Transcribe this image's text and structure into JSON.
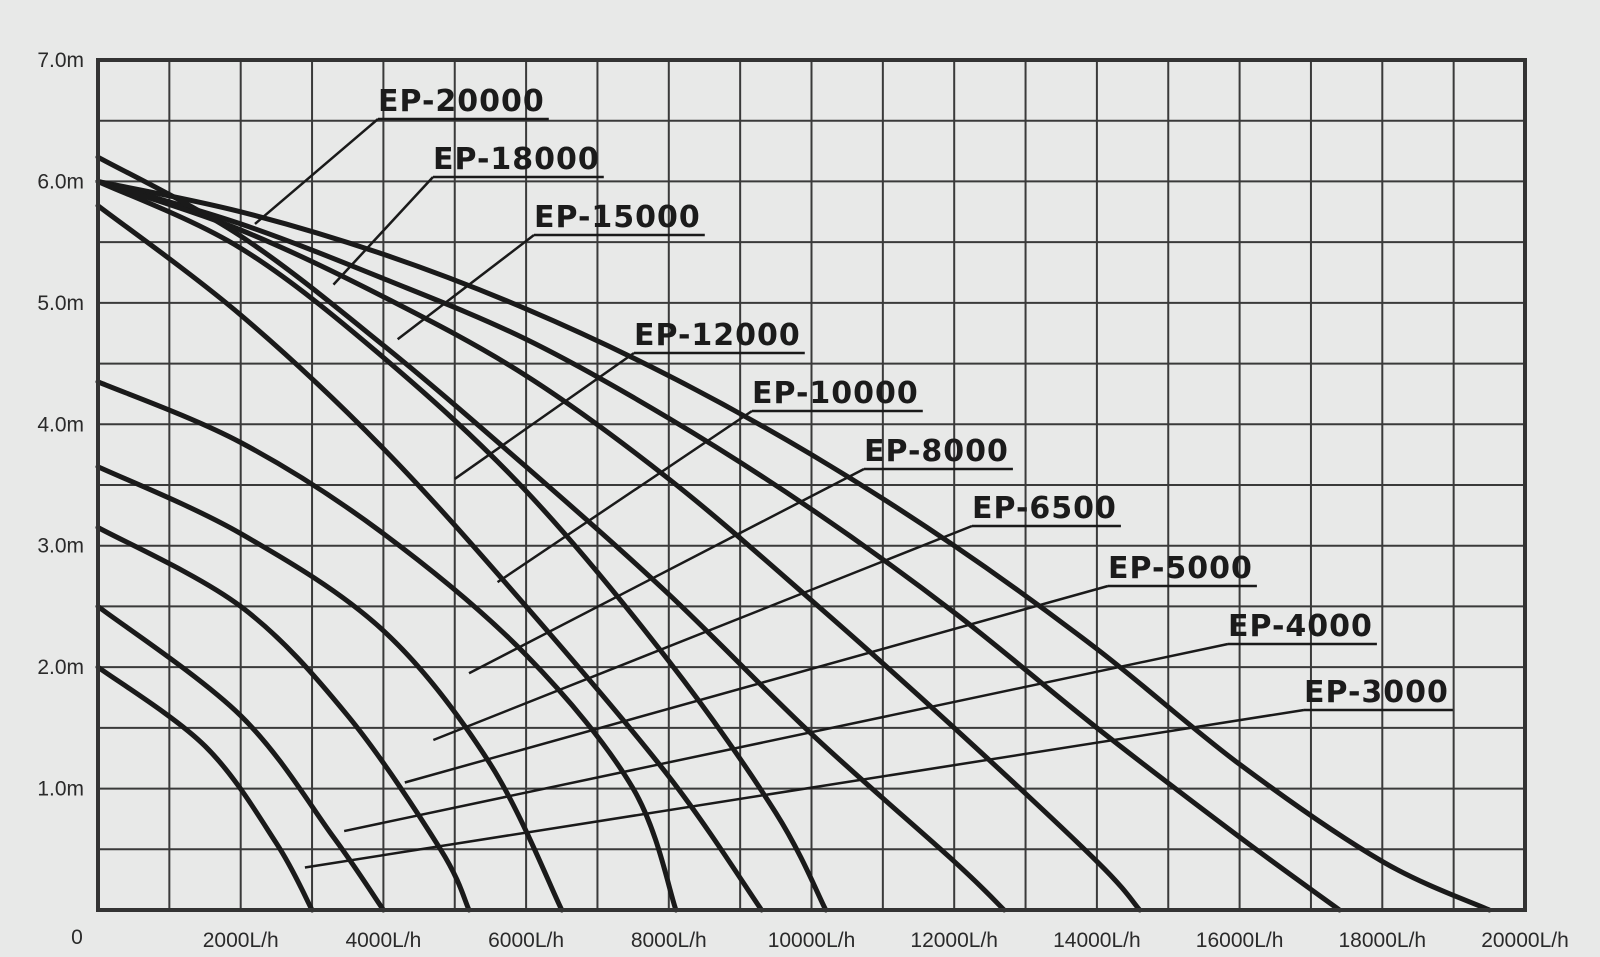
{
  "chart_data": {
    "type": "line",
    "x_axis": {
      "range": [
        0,
        20000
      ],
      "ticks": [
        2000,
        4000,
        6000,
        8000,
        10000,
        12000,
        14000,
        16000,
        18000,
        20000
      ],
      "tick_labels": [
        "2000L/h",
        "4000L/h",
        "6000L/h",
        "8000L/h",
        "10000L/h",
        "12000L/h",
        "14000L/h",
        "16000L/h",
        "18000L/h",
        "20000L/h"
      ],
      "origin_label": "0"
    },
    "y_axis": {
      "range": [
        0,
        7
      ],
      "ticks": [
        1,
        2,
        3,
        4,
        5,
        6,
        7
      ],
      "tick_labels": [
        "1.0m",
        "2.0m",
        "3.0m",
        "4.0m",
        "5.0m",
        "6.0m",
        "7.0m"
      ]
    },
    "grid": true,
    "series": [
      {
        "name": "EP-20000",
        "points": [
          [
            0,
            6.0
          ],
          [
            2000,
            5.75
          ],
          [
            4000,
            5.4
          ],
          [
            6000,
            4.95
          ],
          [
            8000,
            4.4
          ],
          [
            10000,
            3.75
          ],
          [
            12000,
            3.0
          ],
          [
            14000,
            2.15
          ],
          [
            16000,
            1.2
          ],
          [
            18000,
            0.4
          ],
          [
            19500,
            0.0
          ]
        ]
      },
      {
        "name": "EP-18000",
        "points": [
          [
            0,
            6.0
          ],
          [
            2000,
            5.65
          ],
          [
            4000,
            5.2
          ],
          [
            6000,
            4.7
          ],
          [
            8000,
            4.05
          ],
          [
            10000,
            3.3
          ],
          [
            12000,
            2.45
          ],
          [
            14000,
            1.5
          ],
          [
            16000,
            0.6
          ],
          [
            17400,
            0.0
          ]
        ]
      },
      {
        "name": "EP-15000",
        "points": [
          [
            0,
            6.0
          ],
          [
            2000,
            5.6
          ],
          [
            4000,
            5.05
          ],
          [
            6000,
            4.4
          ],
          [
            8000,
            3.55
          ],
          [
            10000,
            2.55
          ],
          [
            12000,
            1.5
          ],
          [
            14000,
            0.4
          ],
          [
            14600,
            0.0
          ]
        ]
      },
      {
        "name": "EP-12000",
        "points": [
          [
            0,
            6.2
          ],
          [
            2000,
            5.55
          ],
          [
            4000,
            4.65
          ],
          [
            6000,
            3.65
          ],
          [
            8000,
            2.6
          ],
          [
            10000,
            1.45
          ],
          [
            12000,
            0.4
          ],
          [
            12700,
            0.0
          ]
        ]
      },
      {
        "name": "EP-10000",
        "points": [
          [
            0,
            6.0
          ],
          [
            2000,
            5.45
          ],
          [
            4000,
            4.55
          ],
          [
            6000,
            3.45
          ],
          [
            8000,
            2.05
          ],
          [
            9500,
            0.8
          ],
          [
            10200,
            0.0
          ]
        ]
      },
      {
        "name": "EP-8000",
        "points": [
          [
            0,
            5.8
          ],
          [
            2000,
            4.9
          ],
          [
            4000,
            3.8
          ],
          [
            6000,
            2.5
          ],
          [
            8000,
            1.1
          ],
          [
            9300,
            0.0
          ]
        ]
      },
      {
        "name": "EP-6500",
        "points": [
          [
            0,
            4.35
          ],
          [
            2000,
            3.85
          ],
          [
            4000,
            3.1
          ],
          [
            6000,
            2.1
          ],
          [
            7500,
            1.0
          ],
          [
            8100,
            0.0
          ]
        ]
      },
      {
        "name": "EP-5000",
        "points": [
          [
            0,
            3.65
          ],
          [
            2000,
            3.1
          ],
          [
            4000,
            2.3
          ],
          [
            5500,
            1.2
          ],
          [
            6500,
            0.0
          ]
        ]
      },
      {
        "name": "EP-4000",
        "points": [
          [
            0,
            3.15
          ],
          [
            2000,
            2.5
          ],
          [
            3500,
            1.6
          ],
          [
            4800,
            0.5
          ],
          [
            5200,
            0.0
          ]
        ]
      },
      {
        "name": "EP-3000",
        "points": [
          [
            0,
            2.5
          ],
          [
            2000,
            1.6
          ],
          [
            3300,
            0.6
          ],
          [
            4000,
            0.0
          ]
        ]
      },
      {
        "name": "",
        "points": [
          [
            0,
            2.0
          ],
          [
            1500,
            1.35
          ],
          [
            2500,
            0.55
          ],
          [
            3000,
            0.0
          ]
        ]
      }
    ],
    "labels": [
      {
        "text": "EP-20000",
        "leader_to": [
          2200,
          5.65
        ]
      },
      {
        "text": "EP-18000",
        "leader_to": [
          3300,
          5.15
        ]
      },
      {
        "text": "EP-15000",
        "leader_to": [
          4200,
          4.7
        ]
      },
      {
        "text": "EP-12000",
        "leader_to": [
          5000,
          3.55
        ]
      },
      {
        "text": "EP-10000",
        "leader_to": [
          5600,
          2.7
        ]
      },
      {
        "text": "EP-8000",
        "leader_to": [
          5200,
          1.95
        ]
      },
      {
        "text": "EP-6500",
        "leader_to": [
          4700,
          1.4
        ]
      },
      {
        "text": "EP-5000",
        "leader_to": [
          4300,
          1.05
        ]
      },
      {
        "text": "EP-4000",
        "leader_to": [
          3450,
          0.65
        ]
      },
      {
        "text": "EP-3000",
        "leader_to": [
          2900,
          0.35
        ]
      }
    ]
  }
}
